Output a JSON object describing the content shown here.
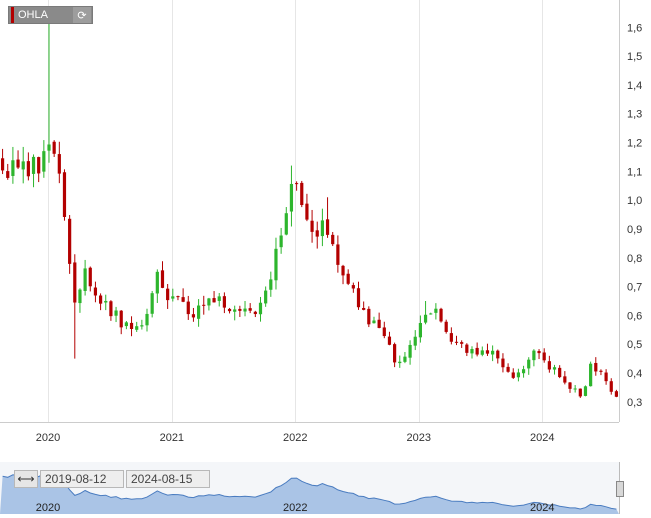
{
  "ticker": {
    "label": "OHLA",
    "refresh_icon": "refresh-icon"
  },
  "range": {
    "start": "2019-08-12",
    "end": "2024-08-15",
    "arrows_icon": "range-arrows-icon"
  },
  "colors": {
    "up": "#2db52d",
    "down": "#b30000",
    "grid": "#e6e6e6",
    "navigator_fill": "#aac4e6",
    "navigator_line": "#4a7cc0"
  },
  "chart_data": {
    "type": "candlestick",
    "series_name": "OHLA",
    "y_ticks": [
      "1,6",
      "1,5",
      "1,4",
      "1,3",
      "1,2",
      "1,1",
      "1,0",
      "0,9",
      "0,8",
      "0,7",
      "0,6",
      "0,5",
      "0,4",
      "0,3"
    ],
    "y_tick_values": [
      1.6,
      1.5,
      1.4,
      1.3,
      1.2,
      1.1,
      1.0,
      0.9,
      0.8,
      0.7,
      0.6,
      0.5,
      0.4,
      0.3
    ],
    "ylim": [
      0.23,
      1.66
    ],
    "x_ticks": [
      "2020",
      "2021",
      "2022",
      "2023",
      "2024"
    ],
    "x_tick_dates": [
      "2020-01-01",
      "2021-01-01",
      "2022-01-01",
      "2023-01-01",
      "2024-01-01"
    ],
    "xlim": [
      "2019-08-12",
      "2024-08-15"
    ],
    "navigator_ticks": [
      "2020",
      "2022",
      "2024"
    ],
    "navigator_tick_dates": [
      "2020-01-01",
      "2022-01-01",
      "2024-01-01"
    ],
    "grid": "vertical",
    "anchors": [
      [
        "2019-08-12",
        1.15
      ],
      [
        "2019-10-01",
        1.08
      ],
      [
        "2019-11-15",
        1.12
      ],
      [
        "2019-12-20",
        1.14
      ],
      [
        "2020-01-10",
        1.19
      ],
      [
        "2020-02-05",
        1.12
      ],
      [
        "2020-02-25",
        0.87
      ],
      [
        "2020-03-20",
        0.66
      ],
      [
        "2020-04-20",
        0.74
      ],
      [
        "2020-06-01",
        0.66
      ],
      [
        "2020-07-15",
        0.6
      ],
      [
        "2020-09-01",
        0.55
      ],
      [
        "2020-10-15",
        0.6
      ],
      [
        "2020-11-20",
        0.73
      ],
      [
        "2020-12-20",
        0.65
      ],
      [
        "2021-01-15",
        0.66
      ],
      [
        "2021-03-01",
        0.6
      ],
      [
        "2021-04-15",
        0.64
      ],
      [
        "2021-05-20",
        0.67
      ],
      [
        "2021-07-01",
        0.62
      ],
      [
        "2021-08-15",
        0.6
      ],
      [
        "2021-09-20",
        0.63
      ],
      [
        "2021-10-20",
        0.72
      ],
      [
        "2021-11-20",
        0.9
      ],
      [
        "2021-12-20",
        1.08
      ],
      [
        "2022-01-05",
        1.05
      ],
      [
        "2022-01-25",
        0.92
      ],
      [
        "2022-02-20",
        0.87
      ],
      [
        "2022-03-20",
        0.93
      ],
      [
        "2022-04-15",
        0.86
      ],
      [
        "2022-05-20",
        0.76
      ],
      [
        "2022-06-20",
        0.68
      ],
      [
        "2022-07-20",
        0.6
      ],
      [
        "2022-08-20",
        0.57
      ],
      [
        "2022-09-20",
        0.55
      ],
      [
        "2022-10-15",
        0.45
      ],
      [
        "2022-11-15",
        0.44
      ],
      [
        "2022-12-15",
        0.52
      ],
      [
        "2023-01-15",
        0.57
      ],
      [
        "2023-02-15",
        0.62
      ],
      [
        "2023-03-15",
        0.55
      ],
      [
        "2023-04-15",
        0.52
      ],
      [
        "2023-05-20",
        0.47
      ],
      [
        "2023-07-01",
        0.46
      ],
      [
        "2023-08-01",
        0.48
      ],
      [
        "2023-09-01",
        0.43
      ],
      [
        "2023-10-15",
        0.39
      ],
      [
        "2023-11-20",
        0.45
      ],
      [
        "2023-12-20",
        0.48
      ],
      [
        "2024-01-20",
        0.43
      ],
      [
        "2024-02-20",
        0.39
      ],
      [
        "2024-03-20",
        0.36
      ],
      [
        "2024-04-20",
        0.32
      ],
      [
        "2024-05-10",
        0.36
      ],
      [
        "2024-05-25",
        0.44
      ],
      [
        "2024-06-20",
        0.4
      ],
      [
        "2024-07-20",
        0.35
      ],
      [
        "2024-08-15",
        0.29
      ]
    ],
    "spikes": [
      {
        "date": "2020-01-01",
        "high": 1.62
      },
      {
        "date": "2020-03-24",
        "low": 0.45
      },
      {
        "date": "2021-12-20",
        "high": 1.12
      },
      {
        "date": "2022-04-01",
        "high": 1.01
      },
      {
        "date": "2023-01-20",
        "high": 0.65
      }
    ],
    "candle_count": 120
  }
}
